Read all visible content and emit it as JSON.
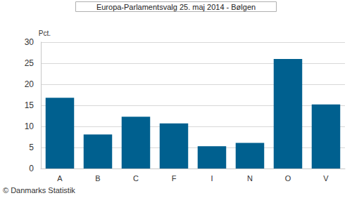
{
  "chart_data": {
    "type": "bar",
    "title": "Europa-Parlamentsvalg 25. maj 2014 - Bølgen",
    "y_label": "Pct.",
    "source": "© Danmarks Statistik",
    "categories": [
      "A",
      "B",
      "C",
      "F",
      "I",
      "N",
      "O",
      "V"
    ],
    "values": [
      16.8,
      8.1,
      12.3,
      10.7,
      5.3,
      6.1,
      26.0,
      15.2
    ],
    "color": "#00608f",
    "ylim": [
      0,
      30
    ],
    "yticks": [
      0,
      5,
      10,
      15,
      20,
      25,
      30
    ],
    "grid": true
  }
}
